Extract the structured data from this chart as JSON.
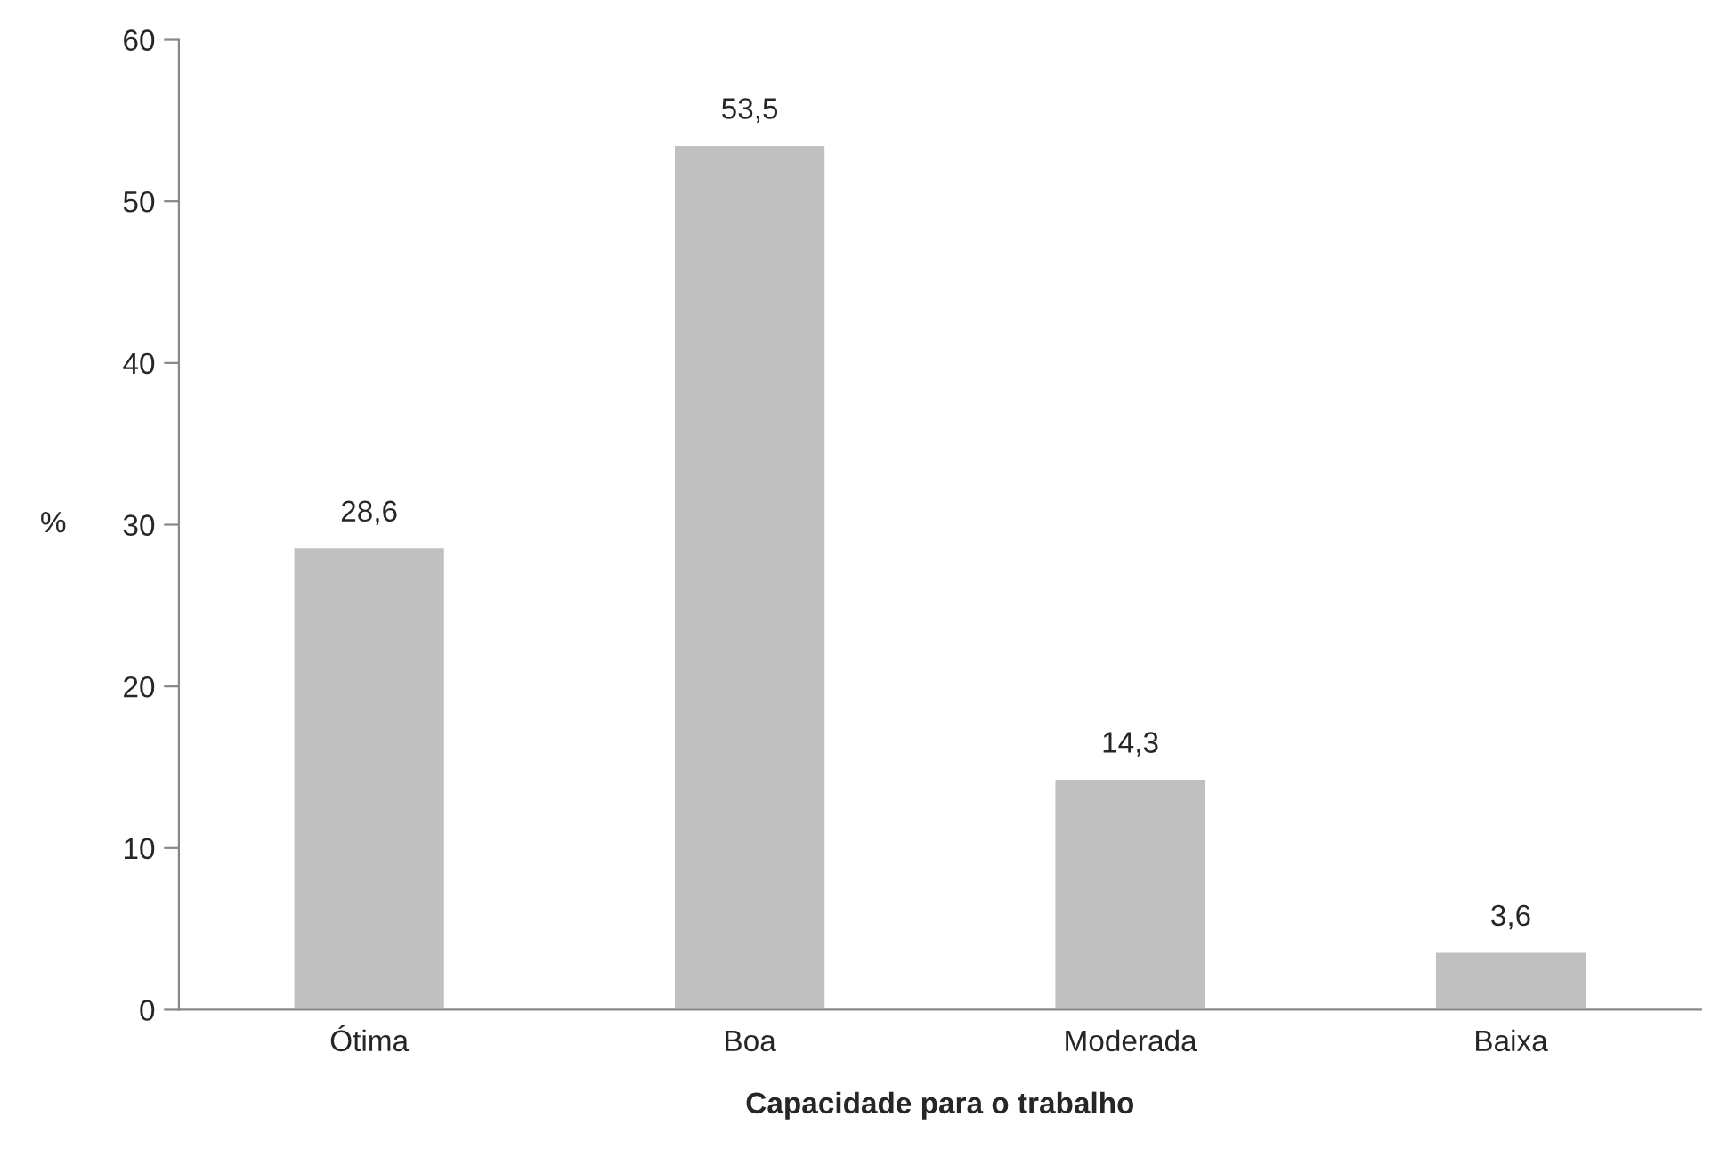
{
  "chart_data": {
    "type": "bar",
    "xlabel": "Capacidade para o trabalho",
    "ylabel": "%",
    "categories": [
      "Ótima",
      "Boa",
      "Moderada",
      "Baixa"
    ],
    "values": [
      28.6,
      53.5,
      14.3,
      3.6
    ],
    "value_labels": [
      "28,6",
      "53,5",
      "14,3",
      "3,6"
    ],
    "color": "#c0c0c0",
    "ylim": [
      0,
      60
    ],
    "yticks": [
      0,
      10,
      20,
      30,
      40,
      50,
      60
    ]
  }
}
